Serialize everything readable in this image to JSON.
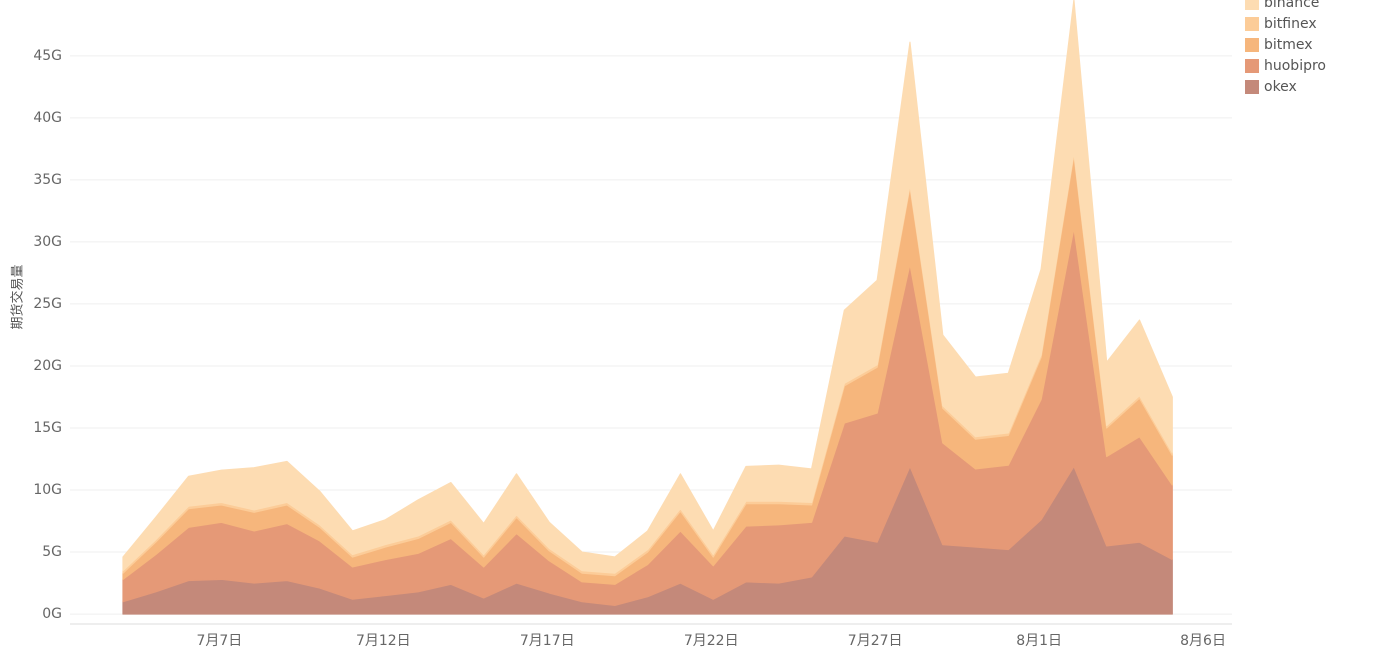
{
  "chart_data": {
    "type": "stacked_area",
    "y_label": "期货交易量",
    "categories": [
      null,
      null,
      null,
      "7月7日",
      null,
      null,
      null,
      null,
      "7月12日",
      null,
      null,
      null,
      null,
      "7月17日",
      null,
      null,
      null,
      null,
      "7月22日",
      null,
      null,
      null,
      null,
      "7月27日",
      null,
      null,
      null,
      null,
      "8月1日",
      null,
      null,
      null,
      null,
      "8月6日"
    ],
    "ylim": [
      -0.8,
      49.5
    ],
    "yticks": [
      {
        "value": 0,
        "label": "0G"
      },
      {
        "value": 5,
        "label": "5G"
      },
      {
        "value": 10,
        "label": "10G"
      },
      {
        "value": 15,
        "label": "15G"
      },
      {
        "value": 20,
        "label": "20G"
      },
      {
        "value": 25,
        "label": "25G"
      },
      {
        "value": 30,
        "label": "30G"
      },
      {
        "value": 35,
        "label": "35G"
      },
      {
        "value": 40,
        "label": "40G"
      },
      {
        "value": 45,
        "label": "45G"
      }
    ],
    "grid": true,
    "legend": "top-right",
    "series": [
      {
        "name": "binance",
        "color": "#fddcb2",
        "values": [
          1.1,
          1.8,
          2.4,
          2.6,
          3.4,
          3.3,
          2.7,
          1.9,
          2.0,
          2.9,
          3.0,
          2.5,
          3.3,
          2.1,
          1.5,
          1.3,
          1.5,
          2.8,
          1.9,
          2.8,
          2.9,
          2.7,
          5.9,
          6.8,
          11.5,
          5.7,
          4.8,
          4.8,
          6.9,
          12.3,
          5.1,
          6.1,
          4.5,
          null
        ]
      },
      {
        "name": "bitfinex",
        "color": "#fccc98",
        "values": [
          0.2,
          0.2,
          0.2,
          0.2,
          0.2,
          0.2,
          0.2,
          0.2,
          0.2,
          0.2,
          0.2,
          0.2,
          0.2,
          0.2,
          0.2,
          0.2,
          0.2,
          0.2,
          0.2,
          0.2,
          0.2,
          0.2,
          0.2,
          0.2,
          0.2,
          0.2,
          0.2,
          0.2,
          0.2,
          0.2,
          0.2,
          0.2,
          0.2,
          null
        ]
      },
      {
        "name": "bitmex",
        "color": "#f6b67c",
        "values": [
          0.5,
          1.0,
          1.5,
          1.4,
          1.5,
          1.5,
          1.1,
          0.8,
          1.0,
          1.2,
          1.3,
          0.8,
          1.3,
          0.8,
          0.7,
          0.7,
          1.0,
          1.6,
          0.7,
          1.8,
          1.7,
          1.4,
          3.0,
          3.7,
          6.2,
          2.8,
          2.4,
          2.4,
          3.4,
          5.9,
          2.3,
          3.1,
          2.4,
          null
        ]
      },
      {
        "name": "huobipro",
        "color": "#e59977",
        "values": [
          1.8,
          3.0,
          4.3,
          4.6,
          4.2,
          4.6,
          3.8,
          2.6,
          2.9,
          3.1,
          3.7,
          2.5,
          4.0,
          2.6,
          1.6,
          1.7,
          2.6,
          4.2,
          2.7,
          4.5,
          4.7,
          4.4,
          9.1,
          10.4,
          16.3,
          8.2,
          6.3,
          6.8,
          9.7,
          19.2,
          7.2,
          8.5,
          6.0,
          null
        ]
      },
      {
        "name": "okex",
        "color": "#c4897a",
        "values": [
          1.0,
          1.8,
          2.7,
          2.8,
          2.5,
          2.7,
          2.1,
          1.2,
          1.5,
          1.8,
          2.4,
          1.3,
          2.5,
          1.7,
          1.0,
          0.7,
          1.4,
          2.5,
          1.2,
          2.6,
          2.5,
          3.0,
          6.3,
          5.8,
          11.9,
          5.6,
          5.4,
          5.2,
          7.6,
          11.9,
          5.5,
          5.8,
          4.4,
          null
        ]
      }
    ]
  }
}
